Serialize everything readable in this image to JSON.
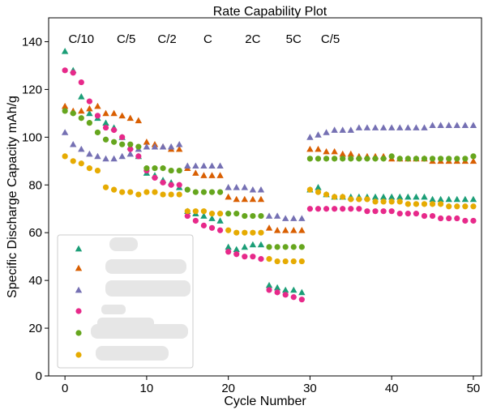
{
  "chart_data": {
    "type": "scatter",
    "title": "Rate Capability Plot",
    "xlabel": "Cycle Number",
    "ylabel": "Specific Discharge Capacity mAh/g",
    "xlim": [
      -2,
      51
    ],
    "ylim": [
      0,
      150
    ],
    "xticks": [
      0,
      10,
      20,
      30,
      40,
      50
    ],
    "yticks": [
      0,
      20,
      40,
      60,
      80,
      100,
      120,
      140
    ],
    "grid": false,
    "legend_position": "bottom-left",
    "rate_labels": [
      {
        "text": "C/10",
        "x": 2
      },
      {
        "text": "C/5",
        "x": 7.5
      },
      {
        "text": "C/2",
        "x": 12.5
      },
      {
        "text": "C",
        "x": 17.5
      },
      {
        "text": "2C",
        "x": 23
      },
      {
        "text": "5C",
        "x": 28
      },
      {
        "text": "C/5",
        "x": 32.5
      }
    ],
    "series": [
      {
        "marker": "triangle",
        "color": "#1b9e77",
        "points": [
          [
            0,
            136
          ],
          [
            1,
            128
          ],
          [
            2,
            117
          ],
          [
            3,
            110
          ],
          [
            4,
            108
          ],
          [
            5,
            106
          ],
          [
            6,
            104
          ],
          [
            7,
            100
          ],
          [
            8,
            96
          ],
          [
            9,
            92
          ],
          [
            10,
            85
          ],
          [
            11,
            84
          ],
          [
            12,
            82
          ],
          [
            13,
            81
          ],
          [
            14,
            79
          ],
          [
            15,
            69
          ],
          [
            16,
            68
          ],
          [
            17,
            67
          ],
          [
            18,
            66
          ],
          [
            19,
            65
          ],
          [
            20,
            54
          ],
          [
            21,
            53
          ],
          [
            22,
            54
          ],
          [
            23,
            55
          ],
          [
            24,
            55
          ],
          [
            25,
            38
          ],
          [
            26,
            37
          ],
          [
            27,
            36
          ],
          [
            28,
            36
          ],
          [
            29,
            35
          ],
          [
            30,
            78
          ],
          [
            31,
            79
          ],
          [
            32,
            76
          ],
          [
            33,
            75
          ],
          [
            34,
            75
          ],
          [
            35,
            75
          ],
          [
            36,
            75
          ],
          [
            37,
            75
          ],
          [
            38,
            75
          ],
          [
            39,
            75
          ],
          [
            40,
            75
          ],
          [
            41,
            75
          ],
          [
            42,
            75
          ],
          [
            43,
            75
          ],
          [
            44,
            75
          ],
          [
            45,
            74
          ],
          [
            46,
            74
          ],
          [
            47,
            74
          ],
          [
            48,
            74
          ],
          [
            49,
            74
          ],
          [
            50,
            74
          ]
        ]
      },
      {
        "marker": "triangle",
        "color": "#d95f02",
        "points": [
          [
            0,
            113
          ],
          [
            1,
            111
          ],
          [
            2,
            111
          ],
          [
            3,
            112
          ],
          [
            4,
            113
          ],
          [
            5,
            110
          ],
          [
            6,
            110
          ],
          [
            7,
            109
          ],
          [
            8,
            108
          ],
          [
            9,
            107
          ],
          [
            10,
            98
          ],
          [
            11,
            97
          ],
          [
            12,
            96
          ],
          [
            13,
            95
          ],
          [
            14,
            95
          ],
          [
            15,
            87
          ],
          [
            16,
            85
          ],
          [
            17,
            84
          ],
          [
            18,
            84
          ],
          [
            19,
            84
          ],
          [
            20,
            75
          ],
          [
            21,
            74
          ],
          [
            22,
            74
          ],
          [
            23,
            74
          ],
          [
            24,
            74
          ],
          [
            25,
            62
          ],
          [
            26,
            61
          ],
          [
            27,
            61
          ],
          [
            28,
            61
          ],
          [
            29,
            61
          ],
          [
            30,
            95
          ],
          [
            31,
            95
          ],
          [
            32,
            94
          ],
          [
            33,
            94
          ],
          [
            34,
            93
          ],
          [
            35,
            93
          ],
          [
            36,
            92
          ],
          [
            37,
            92
          ],
          [
            38,
            92
          ],
          [
            39,
            92
          ],
          [
            40,
            91
          ],
          [
            41,
            91
          ],
          [
            42,
            91
          ],
          [
            43,
            91
          ],
          [
            44,
            91
          ],
          [
            45,
            90
          ],
          [
            46,
            90
          ],
          [
            47,
            90
          ],
          [
            48,
            90
          ],
          [
            49,
            90
          ],
          [
            50,
            90
          ]
        ]
      },
      {
        "marker": "triangle",
        "color": "#7570b3",
        "points": [
          [
            0,
            102
          ],
          [
            1,
            97
          ],
          [
            2,
            95
          ],
          [
            3,
            93
          ],
          [
            4,
            92
          ],
          [
            5,
            91
          ],
          [
            6,
            91
          ],
          [
            7,
            92
          ],
          [
            8,
            93
          ],
          [
            9,
            95
          ],
          [
            10,
            96
          ],
          [
            11,
            96
          ],
          [
            12,
            96
          ],
          [
            13,
            96
          ],
          [
            14,
            97
          ],
          [
            15,
            88
          ],
          [
            16,
            88
          ],
          [
            17,
            88
          ],
          [
            18,
            88
          ],
          [
            19,
            88
          ],
          [
            20,
            79
          ],
          [
            21,
            79
          ],
          [
            22,
            79
          ],
          [
            23,
            78
          ],
          [
            24,
            78
          ],
          [
            25,
            67
          ],
          [
            26,
            67
          ],
          [
            27,
            66
          ],
          [
            28,
            66
          ],
          [
            29,
            66
          ],
          [
            30,
            100
          ],
          [
            31,
            101
          ],
          [
            32,
            102
          ],
          [
            33,
            103
          ],
          [
            34,
            103
          ],
          [
            35,
            103
          ],
          [
            36,
            104
          ],
          [
            37,
            104
          ],
          [
            38,
            104
          ],
          [
            39,
            104
          ],
          [
            40,
            104
          ],
          [
            41,
            104
          ],
          [
            42,
            104
          ],
          [
            43,
            104
          ],
          [
            44,
            104
          ],
          [
            45,
            105
          ],
          [
            46,
            105
          ],
          [
            47,
            105
          ],
          [
            48,
            105
          ],
          [
            49,
            105
          ],
          [
            50,
            105
          ]
        ]
      },
      {
        "marker": "circle",
        "color": "#e7298a",
        "points": [
          [
            0,
            128
          ],
          [
            1,
            127
          ],
          [
            2,
            123
          ],
          [
            3,
            115
          ],
          [
            4,
            109
          ],
          [
            5,
            104
          ],
          [
            6,
            103
          ],
          [
            7,
            100
          ],
          [
            8,
            95
          ],
          [
            9,
            92
          ],
          [
            10,
            86
          ],
          [
            11,
            83
          ],
          [
            12,
            81
          ],
          [
            13,
            80
          ],
          [
            14,
            80
          ],
          [
            15,
            67
          ],
          [
            16,
            65
          ],
          [
            17,
            63
          ],
          [
            18,
            62
          ],
          [
            19,
            61
          ],
          [
            20,
            52
          ],
          [
            21,
            51
          ],
          [
            22,
            50
          ],
          [
            23,
            50
          ],
          [
            24,
            49
          ],
          [
            25,
            36
          ],
          [
            26,
            35
          ],
          [
            27,
            34
          ],
          [
            28,
            33
          ],
          [
            29,
            32
          ],
          [
            30,
            70
          ],
          [
            31,
            70
          ],
          [
            32,
            70
          ],
          [
            33,
            70
          ],
          [
            34,
            70
          ],
          [
            35,
            70
          ],
          [
            36,
            70
          ],
          [
            37,
            69
          ],
          [
            38,
            69
          ],
          [
            39,
            69
          ],
          [
            40,
            69
          ],
          [
            41,
            68
          ],
          [
            42,
            68
          ],
          [
            43,
            68
          ],
          [
            44,
            67
          ],
          [
            45,
            67
          ],
          [
            46,
            66
          ],
          [
            47,
            66
          ],
          [
            48,
            66
          ],
          [
            49,
            65
          ],
          [
            50,
            65
          ]
        ]
      },
      {
        "marker": "circle",
        "color": "#66a61e",
        "points": [
          [
            0,
            111
          ],
          [
            1,
            110
          ],
          [
            2,
            108
          ],
          [
            3,
            106
          ],
          [
            4,
            102
          ],
          [
            5,
            99
          ],
          [
            6,
            98
          ],
          [
            7,
            97
          ],
          [
            8,
            97
          ],
          [
            9,
            96
          ],
          [
            10,
            87
          ],
          [
            11,
            87
          ],
          [
            12,
            87
          ],
          [
            13,
            86
          ],
          [
            14,
            86
          ],
          [
            15,
            78
          ],
          [
            16,
            77
          ],
          [
            17,
            77
          ],
          [
            18,
            77
          ],
          [
            19,
            77
          ],
          [
            20,
            68
          ],
          [
            21,
            68
          ],
          [
            22,
            67
          ],
          [
            23,
            67
          ],
          [
            24,
            67
          ],
          [
            25,
            54
          ],
          [
            26,
            54
          ],
          [
            27,
            54
          ],
          [
            28,
            54
          ],
          [
            29,
            54
          ],
          [
            30,
            91
          ],
          [
            31,
            91
          ],
          [
            32,
            91
          ],
          [
            33,
            91
          ],
          [
            34,
            91
          ],
          [
            35,
            91
          ],
          [
            36,
            91
          ],
          [
            37,
            91
          ],
          [
            38,
            91
          ],
          [
            39,
            91
          ],
          [
            40,
            92
          ],
          [
            41,
            91
          ],
          [
            42,
            91
          ],
          [
            43,
            91
          ],
          [
            44,
            91
          ],
          [
            45,
            91
          ],
          [
            46,
            91
          ],
          [
            47,
            91
          ],
          [
            48,
            91
          ],
          [
            49,
            91
          ],
          [
            50,
            92
          ]
        ]
      },
      {
        "marker": "circle",
        "color": "#e6ab02",
        "points": [
          [
            0,
            92
          ],
          [
            1,
            90
          ],
          [
            2,
            89
          ],
          [
            3,
            87
          ],
          [
            4,
            86
          ],
          [
            5,
            79
          ],
          [
            6,
            78
          ],
          [
            7,
            77
          ],
          [
            8,
            77
          ],
          [
            9,
            76
          ],
          [
            10,
            77
          ],
          [
            11,
            77
          ],
          [
            12,
            76
          ],
          [
            13,
            76
          ],
          [
            14,
            76
          ],
          [
            15,
            69
          ],
          [
            16,
            69
          ],
          [
            17,
            69
          ],
          [
            18,
            68
          ],
          [
            19,
            68
          ],
          [
            20,
            61
          ],
          [
            21,
            60
          ],
          [
            22,
            60
          ],
          [
            23,
            60
          ],
          [
            24,
            60
          ],
          [
            25,
            49
          ],
          [
            26,
            48
          ],
          [
            27,
            48
          ],
          [
            28,
            48
          ],
          [
            29,
            48
          ],
          [
            30,
            78
          ],
          [
            31,
            77
          ],
          [
            32,
            76
          ],
          [
            33,
            75
          ],
          [
            34,
            75
          ],
          [
            35,
            74
          ],
          [
            36,
            74
          ],
          [
            37,
            74
          ],
          [
            38,
            73
          ],
          [
            39,
            73
          ],
          [
            40,
            73
          ],
          [
            41,
            73
          ],
          [
            42,
            72
          ],
          [
            43,
            72
          ],
          [
            44,
            72
          ],
          [
            45,
            72
          ],
          [
            46,
            72
          ],
          [
            47,
            71
          ],
          [
            48,
            71
          ],
          [
            49,
            71
          ],
          [
            50,
            71
          ]
        ]
      }
    ]
  }
}
